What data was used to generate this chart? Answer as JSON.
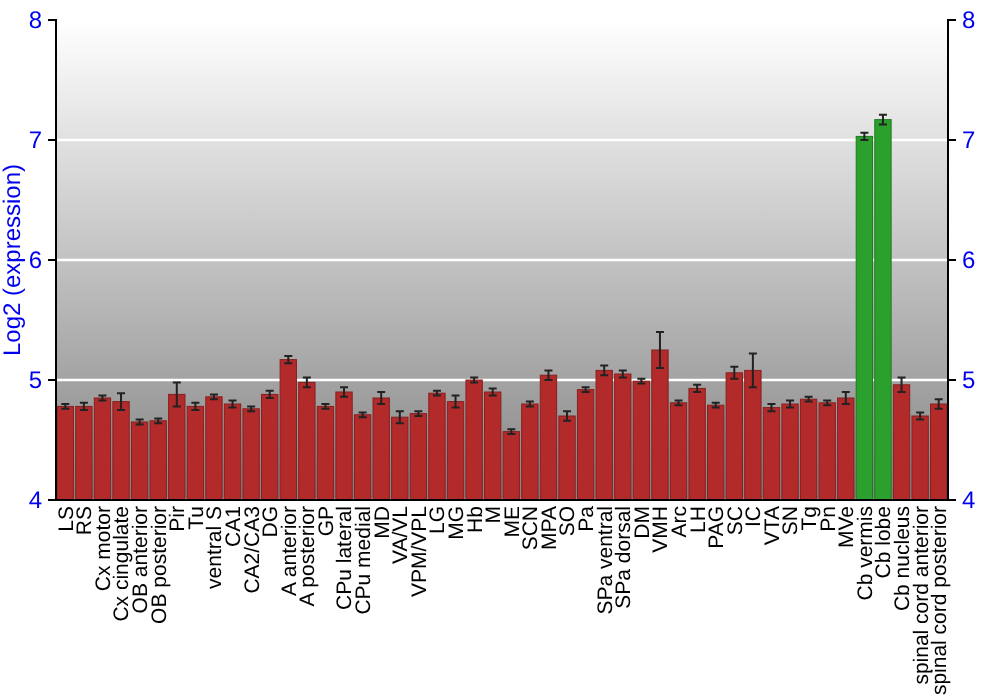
{
  "chart_data": {
    "type": "bar",
    "ylabel": "Log2 (expression)",
    "categories": [
      "LS",
      "RS",
      "Cx motor",
      "Cx cingulate",
      "OB anterior",
      "OB posterior",
      "Pir",
      "Tu",
      "ventral S",
      "CA1",
      "CA2/CA3",
      "DG",
      "A anterior",
      "A posterior",
      "GP",
      "CPu lateral",
      "CPu medial",
      "MD",
      "VA/VL",
      "VPM/VPL",
      "LG",
      "MG",
      "Hb",
      "M",
      "ME",
      "SCN",
      "MPA",
      "SO",
      "Pa",
      "SPa ventral",
      "SPa dorsal",
      "DM",
      "VMH",
      "Arc",
      "LH",
      "PAG",
      "SC",
      "IC",
      "VTA",
      "SN",
      "Tg",
      "Pn",
      "MVe",
      "Cb vermis",
      "Cb lobe",
      "Cb nucleus",
      "spinal cord anterior",
      "spinal cord posterior"
    ],
    "values": [
      4.78,
      4.78,
      4.85,
      4.82,
      4.65,
      4.66,
      4.88,
      4.78,
      4.86,
      4.8,
      4.76,
      4.88,
      5.17,
      4.98,
      4.78,
      4.9,
      4.71,
      4.85,
      4.69,
      4.72,
      4.89,
      4.82,
      5.0,
      4.9,
      4.57,
      4.8,
      5.04,
      4.7,
      4.92,
      5.08,
      5.05,
      4.99,
      5.25,
      4.81,
      4.93,
      4.79,
      5.06,
      5.08,
      4.77,
      4.8,
      4.84,
      4.81,
      4.85,
      7.03,
      7.17,
      4.96,
      4.7,
      4.8
    ],
    "errors": [
      0.02,
      0.03,
      0.02,
      0.07,
      0.02,
      0.02,
      0.1,
      0.03,
      0.02,
      0.03,
      0.02,
      0.03,
      0.03,
      0.04,
      0.02,
      0.04,
      0.02,
      0.05,
      0.05,
      0.02,
      0.02,
      0.05,
      0.02,
      0.03,
      0.02,
      0.02,
      0.04,
      0.04,
      0.02,
      0.04,
      0.03,
      0.02,
      0.15,
      0.02,
      0.03,
      0.02,
      0.05,
      0.14,
      0.03,
      0.03,
      0.02,
      0.02,
      0.05,
      0.03,
      0.04,
      0.06,
      0.03,
      0.04
    ],
    "colors": [
      "#b22a2a",
      "#b22a2a",
      "#b22a2a",
      "#b22a2a",
      "#b22a2a",
      "#b22a2a",
      "#b22a2a",
      "#b22a2a",
      "#b22a2a",
      "#b22a2a",
      "#b22a2a",
      "#b22a2a",
      "#b22a2a",
      "#b22a2a",
      "#b22a2a",
      "#b22a2a",
      "#b22a2a",
      "#b22a2a",
      "#b22a2a",
      "#b22a2a",
      "#b22a2a",
      "#b22a2a",
      "#b22a2a",
      "#b22a2a",
      "#b22a2a",
      "#b22a2a",
      "#b22a2a",
      "#b22a2a",
      "#b22a2a",
      "#b22a2a",
      "#b22a2a",
      "#b22a2a",
      "#b22a2a",
      "#b22a2a",
      "#b22a2a",
      "#b22a2a",
      "#b22a2a",
      "#b22a2a",
      "#b22a2a",
      "#b22a2a",
      "#b22a2a",
      "#b22a2a",
      "#b22a2a",
      "#2ca02c",
      "#2ca02c",
      "#b22a2a",
      "#b22a2a",
      "#b22a2a"
    ],
    "ylim": [
      4,
      8
    ],
    "yticks": [
      4,
      5,
      6,
      7,
      8
    ],
    "y2lim": [
      4,
      8
    ],
    "y2ticks": [
      4,
      5,
      6,
      7,
      8
    ],
    "grid": "y"
  }
}
